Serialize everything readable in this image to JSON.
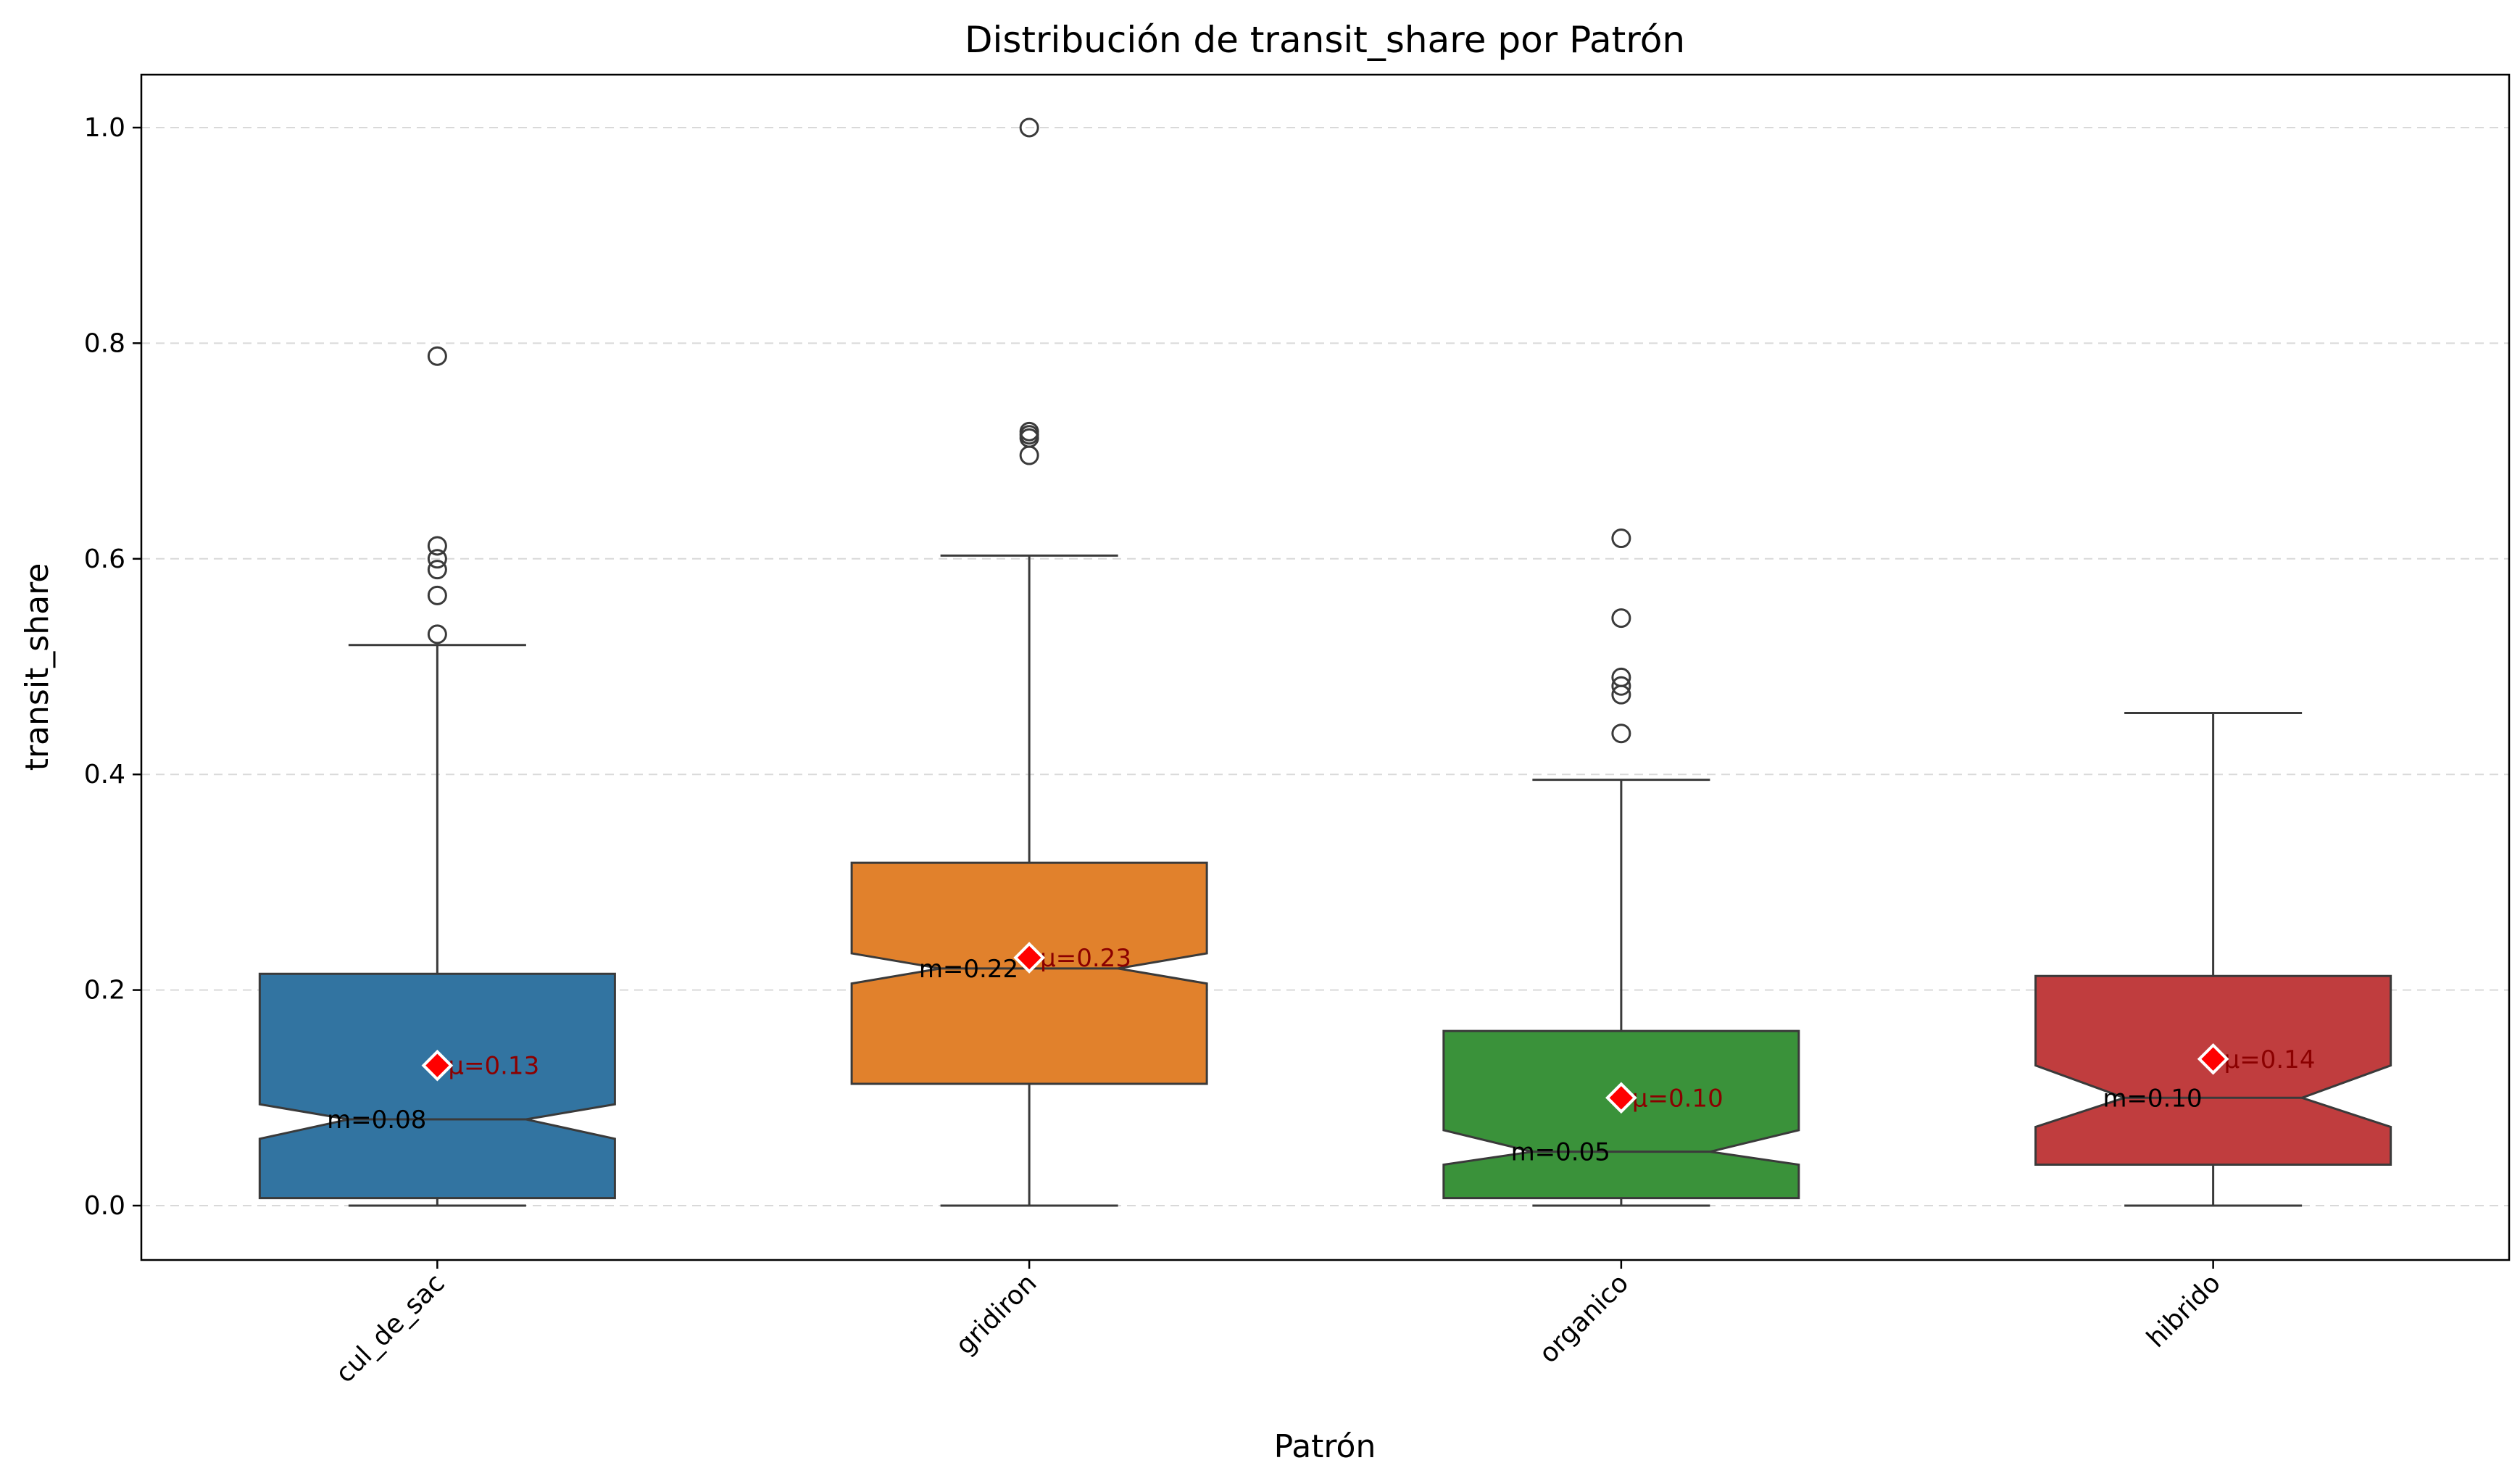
{
  "chart_data": {
    "type": "box",
    "title": "Distribución de transit_share por Patrón",
    "xlabel": "Patrón",
    "ylabel": "transit_share",
    "ylim": [
      -0.05,
      1.05
    ],
    "yticks": [
      0.0,
      0.2,
      0.4,
      0.6,
      0.8,
      1.0
    ],
    "ytick_labels": [
      "0.0",
      "0.2",
      "0.4",
      "0.6",
      "0.8",
      "1.0"
    ],
    "grid": "y-dashed",
    "notched": true,
    "categories": [
      "cul_de_sac",
      "gridiron",
      "organico",
      "hibrido"
    ],
    "boxes": [
      {
        "category": "cul_de_sac",
        "color": "#3274a1",
        "whisker_low": 0.0,
        "q1": 0.007,
        "median": 0.08,
        "q3": 0.215,
        "whisker_high": 0.52,
        "notch_low": 0.062,
        "notch_high": 0.094,
        "mean": 0.13,
        "outliers": [
          0.53,
          0.566,
          0.59,
          0.6,
          0.612,
          0.788
        ],
        "median_label": "m=0.08",
        "mean_label": "μ=0.13"
      },
      {
        "category": "gridiron",
        "color": "#e1812c",
        "whisker_low": 0.0,
        "q1": 0.113,
        "median": 0.22,
        "q3": 0.318,
        "whisker_high": 0.603,
        "notch_low": 0.206,
        "notch_high": 0.234,
        "mean": 0.23,
        "outliers": [
          0.696,
          0.712,
          0.715,
          0.718,
          1.0
        ],
        "median_label": "m=0.22",
        "mean_label": "μ=0.23"
      },
      {
        "category": "organico",
        "color": "#3a923a",
        "whisker_low": 0.0,
        "q1": 0.007,
        "median": 0.05,
        "q3": 0.162,
        "whisker_high": 0.395,
        "notch_low": 0.038,
        "notch_high": 0.07,
        "mean": 0.1,
        "outliers": [
          0.438,
          0.474,
          0.482,
          0.49,
          0.545,
          0.619
        ],
        "median_label": "m=0.05",
        "mean_label": "μ=0.10"
      },
      {
        "category": "hibrido",
        "color": "#c03d3e",
        "whisker_low": 0.0,
        "q1": 0.038,
        "median": 0.1,
        "q3": 0.213,
        "whisker_high": 0.457,
        "notch_low": 0.073,
        "notch_high": 0.13,
        "mean": 0.136,
        "outliers": [],
        "median_label": "m=0.10",
        "mean_label": "μ=0.14"
      }
    ]
  }
}
